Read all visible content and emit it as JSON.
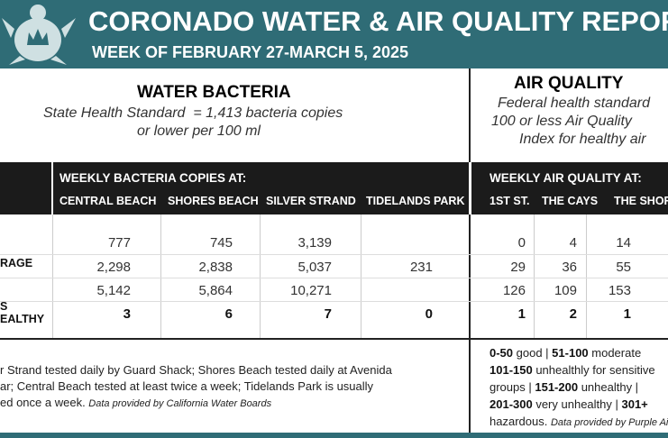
{
  "header": {
    "title": "CORONADO WATER & AIR QUALITY REPORT",
    "subtitle": "WEEK OF FEBRUARY 27-MARCH 5, 2025"
  },
  "water": {
    "heading": "WATER BACTERIA",
    "standard": [
      "State Health Standard  = 1,413 bacteria copies",
      "or lower per 100 ml"
    ],
    "group": "WEEKLY BACTERIA COPIES AT:",
    "columns": [
      "CENTRAL BEACH",
      "SHORES BEACH",
      "SILVER STRAND",
      "TIDELANDS PARK"
    ],
    "rows": [
      [
        "777",
        "745",
        "3,139",
        ""
      ],
      [
        "2,298",
        "2,838",
        "5,037",
        "231"
      ],
      [
        "5,142",
        "5,864",
        "10,271",
        ""
      ],
      [
        "3",
        "6",
        "7",
        "0"
      ]
    ]
  },
  "row_labels": [
    "",
    "RAGE",
    "",
    "S\nEALTHY"
  ],
  "air": {
    "heading": "AIR QUALITY",
    "standard": [
      "Federal health standard",
      "100 or less Air Quality",
      "Index for healthy air"
    ],
    "group": "WEEKLY AIR QUALITY AT:",
    "columns": [
      "1ST ST.",
      "THE CAYS",
      "THE SHORES"
    ],
    "rows": [
      [
        "0",
        "4",
        "14"
      ],
      [
        "29",
        "36",
        "55"
      ],
      [
        "126",
        "109",
        "153"
      ],
      [
        "1",
        "2",
        "1"
      ]
    ]
  },
  "notes": {
    "water": [
      "r Strand tested daily by Guard Shack; Shores Beach tested daily at Avenida",
      "ar; Central Beach tested at least twice a week; Tidelands Park is usually",
      "ed once a week. ",
      "Data provided by California Water Boards"
    ],
    "air": [
      [
        "0-50",
        " good | ",
        "51-100",
        " moderate"
      ],
      [
        "101-150",
        " unhealthly for sensitive"
      ],
      [
        "groups | ",
        "151-200",
        " unhealthy |"
      ],
      [
        "201-300",
        " very unhealthy | ",
        "301+"
      ],
      [
        "hazardous. ",
        "Data provided by Purple Air"
      ]
    ]
  }
}
